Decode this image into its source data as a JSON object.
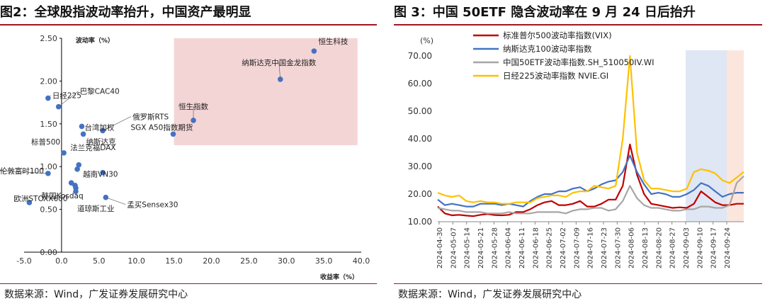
{
  "left": {
    "title": "图2：全球股指波动率抬升，中国资产最明显",
    "source": "数据来源：Wind，广发证券发展研究中心",
    "chart_data": {
      "type": "scatter",
      "xlabel": "收益率（%）",
      "ylabel": "波动率（%）",
      "xlim": [
        -5,
        40
      ],
      "ylim": [
        0,
        2.5
      ],
      "x_ticks": [
        "-5.0",
        "0.0",
        "5.0",
        "10.0",
        "15.0",
        "20.0",
        "25.0",
        "30.0",
        "35.0",
        "40.0"
      ],
      "y_ticks": [
        "0.00",
        "0.50",
        "1.00",
        "1.50",
        "2.00",
        "2.50"
      ],
      "highlight_region": {
        "x": [
          15,
          39.5
        ],
        "y": [
          1.25,
          2.5
        ],
        "color": "#f4d5d6"
      },
      "point_color": "#4472c4",
      "points": [
        {
          "label": "恒生科技",
          "x": 33.7,
          "y": 2.35
        },
        {
          "label": "纳斯达克中国金龙指数",
          "x": 29.2,
          "y": 2.02
        },
        {
          "label": "恒生指数",
          "x": 17.6,
          "y": 1.54
        },
        {
          "label": "SGX A50指数期货",
          "x": 14.9,
          "y": 1.38
        },
        {
          "label": "日经225",
          "x": -1.8,
          "y": 1.8
        },
        {
          "label": "巴黎CAC40",
          "x": -0.4,
          "y": 1.7
        },
        {
          "label": "俄罗斯RTS",
          "x": 5.5,
          "y": 1.42
        },
        {
          "label": "台湾加权",
          "x": 2.7,
          "y": 1.47
        },
        {
          "label": "纳斯达克",
          "x": 2.9,
          "y": 1.38
        },
        {
          "label": "法兰克福DAX",
          "x": 2.3,
          "y": 1.02
        },
        {
          "label": "标普500",
          "x": 0.3,
          "y": 1.16
        },
        {
          "label": "伦敦富时100",
          "x": -1.8,
          "y": 0.92
        },
        {
          "label": "越南VN30",
          "x": 5.5,
          "y": 0.93
        },
        {
          "label": "韩国Kosdaq",
          "x": 1.3,
          "y": 0.81
        },
        {
          "label": "欧洲STOXX600",
          "x": -4.3,
          "y": 0.58
        },
        {
          "label": "孟买Sensex30",
          "x": 5.9,
          "y": 0.64
        },
        {
          "label": "道琼斯工业",
          "x": 1.9,
          "y": 0.71
        },
        {
          "label": "",
          "x": 2.1,
          "y": 0.97
        },
        {
          "label": "",
          "x": 1.9,
          "y": 0.75
        },
        {
          "label": "",
          "x": 1.8,
          "y": 0.78
        }
      ]
    }
  },
  "right": {
    "title": "图 3：中国 50ETF 隐含波动率在 9 月 24 日后抬升",
    "source": "数据来源：Wind，广发证券发展研究中心",
    "chart_data": {
      "type": "line",
      "unit_label": "(%)",
      "ylim": [
        10,
        70
      ],
      "y_ticks": [
        "10.00",
        "20.00",
        "30.00",
        "40.00",
        "50.00",
        "60.00",
        "70.00"
      ],
      "x_ticks": [
        "2024-04-30",
        "2024-05-07",
        "2024-05-14",
        "2024-05-21",
        "2024-05-28",
        "2024-06-04",
        "2024-06-11",
        "2024-06-18",
        "2024-06-25",
        "2024-07-02",
        "2024-07-09",
        "2024-07-16",
        "2024-07-23",
        "2024-07-30",
        "2024-08-06",
        "2024-08-13",
        "2024-08-20",
        "2024-08-27",
        "2024-09-03",
        "2024-09-10",
        "2024-09-17",
        "2024-09-24"
      ],
      "shaded_regions": [
        {
          "x_start": "2024-09-03",
          "x_end": "2024-09-24",
          "color": "#dfe6f4"
        },
        {
          "x_start": "2024-09-24",
          "x_end": "2024-09-30",
          "color": "#fbe6dd"
        }
      ],
      "series": [
        {
          "name": "标准普尔500波动率指数(VIX)",
          "color": "#c00000",
          "values": [
            15.5,
            13.0,
            12.3,
            12.5,
            12.2,
            12.0,
            12.5,
            12.8,
            12.4,
            12.3,
            12.5,
            13.5,
            13.5,
            14.5,
            16.0,
            17.0,
            17.5,
            16.0,
            16.0,
            16.5,
            17.5,
            15.5,
            15.5,
            16.5,
            18.0,
            18.0,
            23.0,
            38.0,
            27.0,
            20.0,
            16.5,
            16.0,
            15.5,
            15.0,
            15.2,
            15.0,
            16.5,
            21.0,
            19.0,
            17.0,
            16.0,
            16.0,
            16.5,
            16.5
          ]
        },
        {
          "name": "纳斯达克100波动率指数",
          "color": "#4472c4",
          "values": [
            18.0,
            16.0,
            16.5,
            16.0,
            15.5,
            15.5,
            16.5,
            16.5,
            16.5,
            16.0,
            16.5,
            16.0,
            15.5,
            17.5,
            19.0,
            20.0,
            20.0,
            21.0,
            21.0,
            22.0,
            22.5,
            21.0,
            22.0,
            23.5,
            24.5,
            25.0,
            28.0,
            34.0,
            28.0,
            23.5,
            20.0,
            20.5,
            20.0,
            19.0,
            19.0,
            20.0,
            21.5,
            24.0,
            23.0,
            21.0,
            19.0,
            20.0,
            20.5,
            20.5
          ]
        },
        {
          "name": "中国50ETF波动率指数.SH_510050IV.WI",
          "color": "#a6a6a6",
          "values": [
            15.0,
            14.5,
            14.0,
            14.0,
            13.5,
            13.5,
            13.5,
            13.0,
            13.0,
            13.0,
            13.5,
            13.0,
            13.0,
            13.0,
            13.5,
            13.5,
            13.5,
            13.5,
            13.0,
            14.0,
            14.5,
            14.5,
            15.0,
            15.0,
            14.0,
            14.5,
            17.5,
            23.0,
            18.5,
            16.0,
            15.0,
            15.0,
            14.5,
            14.0,
            14.0,
            14.5,
            14.5,
            15.5,
            15.5,
            15.0,
            15.0,
            16.0,
            24.0,
            26.5
          ]
        },
        {
          "name": "日经225波动率指数 NVIE.GI",
          "color": "#ffc000",
          "values": [
            20.5,
            19.5,
            19.0,
            19.5,
            17.5,
            17.0,
            17.5,
            17.0,
            17.0,
            16.5,
            16.5,
            17.0,
            17.0,
            17.0,
            18.5,
            19.0,
            19.5,
            19.5,
            19.0,
            20.5,
            21.0,
            21.0,
            23.0,
            22.5,
            22.0,
            23.0,
            40.0,
            70.0,
            35.0,
            25.0,
            22.0,
            22.0,
            21.5,
            21.0,
            21.0,
            22.0,
            28.0,
            29.0,
            28.5,
            27.5,
            25.0,
            24.0,
            26.0,
            28.0
          ]
        }
      ]
    }
  }
}
